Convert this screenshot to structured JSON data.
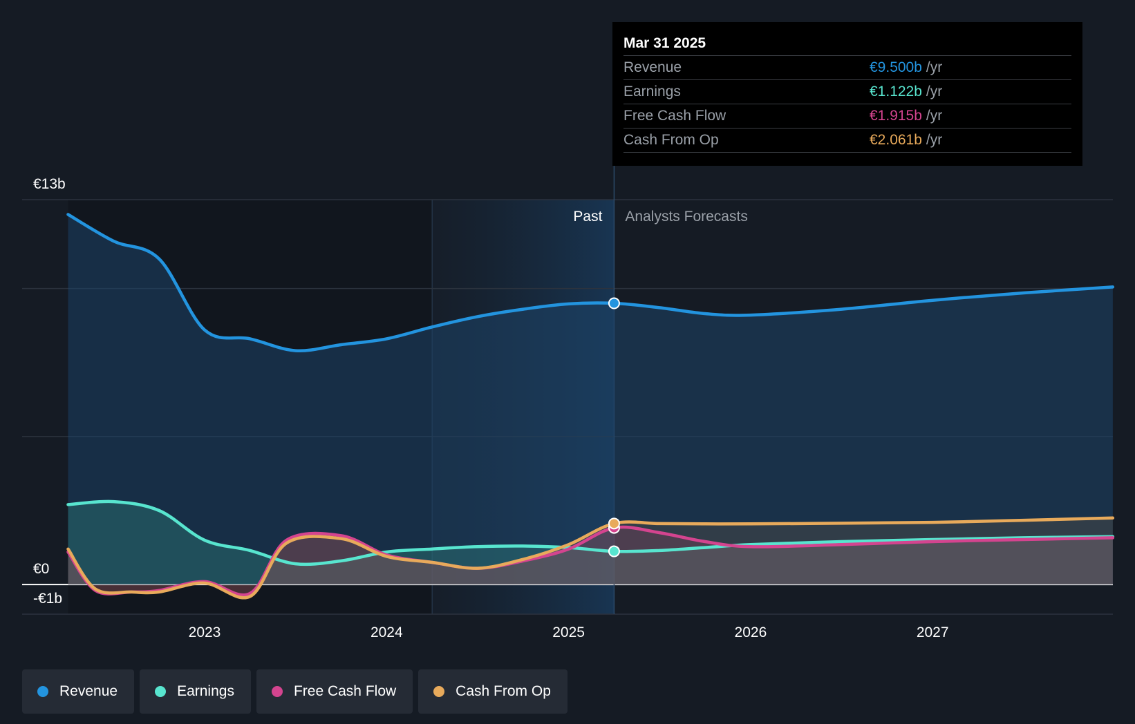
{
  "chart_data": {
    "type": "area",
    "y_unit": "€ billions",
    "ylim": [
      -1,
      13
    ],
    "y_tick_labels": [
      {
        "value": 13,
        "label": "€13b"
      },
      {
        "value": 0,
        "label": "€0"
      },
      {
        "value": -1,
        "label": "-€1b"
      }
    ],
    "x_tick_labels": [
      {
        "value": 2023.0,
        "label": "2023"
      },
      {
        "value": 2024.0,
        "label": "2024"
      },
      {
        "value": 2025.0,
        "label": "2025"
      },
      {
        "value": 2026.0,
        "label": "2026"
      },
      {
        "value": 2027.0,
        "label": "2027"
      }
    ],
    "xlim": [
      2022.0,
      2027.99
    ],
    "past_label": "Past",
    "forecast_label": "Analysts Forecasts",
    "divider_x": 2025.25,
    "shaded_start_x": 2024.25,
    "series": [
      {
        "name": "Revenue",
        "color": "#2394df",
        "points": [
          [
            2022.25,
            12.5
          ],
          [
            2022.5,
            11.6
          ],
          [
            2022.75,
            11.0
          ],
          [
            2023.0,
            8.6
          ],
          [
            2023.25,
            8.3
          ],
          [
            2023.5,
            7.9
          ],
          [
            2023.75,
            8.1
          ],
          [
            2024.0,
            8.3
          ],
          [
            2024.25,
            8.7
          ],
          [
            2024.5,
            9.05
          ],
          [
            2024.75,
            9.3
          ],
          [
            2025.0,
            9.48
          ],
          [
            2025.25,
            9.5
          ],
          [
            2025.5,
            9.35
          ],
          [
            2025.75,
            9.15
          ],
          [
            2026.0,
            9.1
          ],
          [
            2026.5,
            9.3
          ],
          [
            2027.0,
            9.6
          ],
          [
            2027.5,
            9.85
          ],
          [
            2027.99,
            10.05
          ]
        ]
      },
      {
        "name": "Earnings",
        "color": "#58e5cf",
        "points": [
          [
            2022.25,
            2.7
          ],
          [
            2022.5,
            2.8
          ],
          [
            2022.75,
            2.5
          ],
          [
            2023.0,
            1.5
          ],
          [
            2023.25,
            1.15
          ],
          [
            2023.5,
            0.7
          ],
          [
            2023.75,
            0.8
          ],
          [
            2024.0,
            1.1
          ],
          [
            2024.25,
            1.2
          ],
          [
            2024.5,
            1.28
          ],
          [
            2024.75,
            1.3
          ],
          [
            2025.0,
            1.25
          ],
          [
            2025.25,
            1.122
          ],
          [
            2025.5,
            1.15
          ],
          [
            2025.75,
            1.25
          ],
          [
            2026.0,
            1.35
          ],
          [
            2026.5,
            1.45
          ],
          [
            2027.0,
            1.52
          ],
          [
            2027.5,
            1.58
          ],
          [
            2027.99,
            1.62
          ]
        ]
      },
      {
        "name": "Free Cash Flow",
        "color": "#d4448f",
        "points": [
          [
            2022.25,
            1.1
          ],
          [
            2022.4,
            -0.2
          ],
          [
            2022.6,
            -0.25
          ],
          [
            2022.75,
            -0.2
          ],
          [
            2023.0,
            0.1
          ],
          [
            2023.25,
            -0.3
          ],
          [
            2023.45,
            1.5
          ],
          [
            2023.75,
            1.65
          ],
          [
            2024.0,
            1.0
          ],
          [
            2024.25,
            0.75
          ],
          [
            2024.5,
            0.55
          ],
          [
            2024.75,
            0.8
          ],
          [
            2025.0,
            1.2
          ],
          [
            2025.25,
            1.915
          ],
          [
            2025.5,
            1.75
          ],
          [
            2025.75,
            1.45
          ],
          [
            2026.0,
            1.28
          ],
          [
            2026.5,
            1.35
          ],
          [
            2027.0,
            1.45
          ],
          [
            2027.5,
            1.52
          ],
          [
            2027.99,
            1.58
          ]
        ]
      },
      {
        "name": "Cash From Op",
        "color": "#e8aa5b",
        "points": [
          [
            2022.25,
            1.2
          ],
          [
            2022.4,
            -0.15
          ],
          [
            2022.6,
            -0.25
          ],
          [
            2022.75,
            -0.25
          ],
          [
            2023.0,
            0.05
          ],
          [
            2023.25,
            -0.4
          ],
          [
            2023.45,
            1.4
          ],
          [
            2023.75,
            1.55
          ],
          [
            2024.0,
            0.95
          ],
          [
            2024.25,
            0.75
          ],
          [
            2024.5,
            0.55
          ],
          [
            2024.75,
            0.85
          ],
          [
            2025.0,
            1.35
          ],
          [
            2025.25,
            2.061
          ],
          [
            2025.5,
            2.06
          ],
          [
            2025.75,
            2.05
          ],
          [
            2026.0,
            2.05
          ],
          [
            2026.5,
            2.07
          ],
          [
            2027.0,
            2.1
          ],
          [
            2027.5,
            2.17
          ],
          [
            2027.99,
            2.25
          ]
        ]
      }
    ],
    "tooltip": {
      "date": "Mar 31 2025",
      "unit": "/yr",
      "rows": [
        {
          "label": "Revenue",
          "value": "€9.500b",
          "color": "#2394df"
        },
        {
          "label": "Earnings",
          "value": "€1.122b",
          "color": "#58e5cf"
        },
        {
          "label": "Free Cash Flow",
          "value": "€1.915b",
          "color": "#d4448f"
        },
        {
          "label": "Cash From Op",
          "value": "€2.061b",
          "color": "#e8aa5b"
        }
      ]
    }
  },
  "legend": [
    {
      "label": "Revenue",
      "color": "#2394df"
    },
    {
      "label": "Earnings",
      "color": "#58e5cf"
    },
    {
      "label": "Free Cash Flow",
      "color": "#d4448f"
    },
    {
      "label": "Cash From Op",
      "color": "#e8aa5b"
    }
  ]
}
